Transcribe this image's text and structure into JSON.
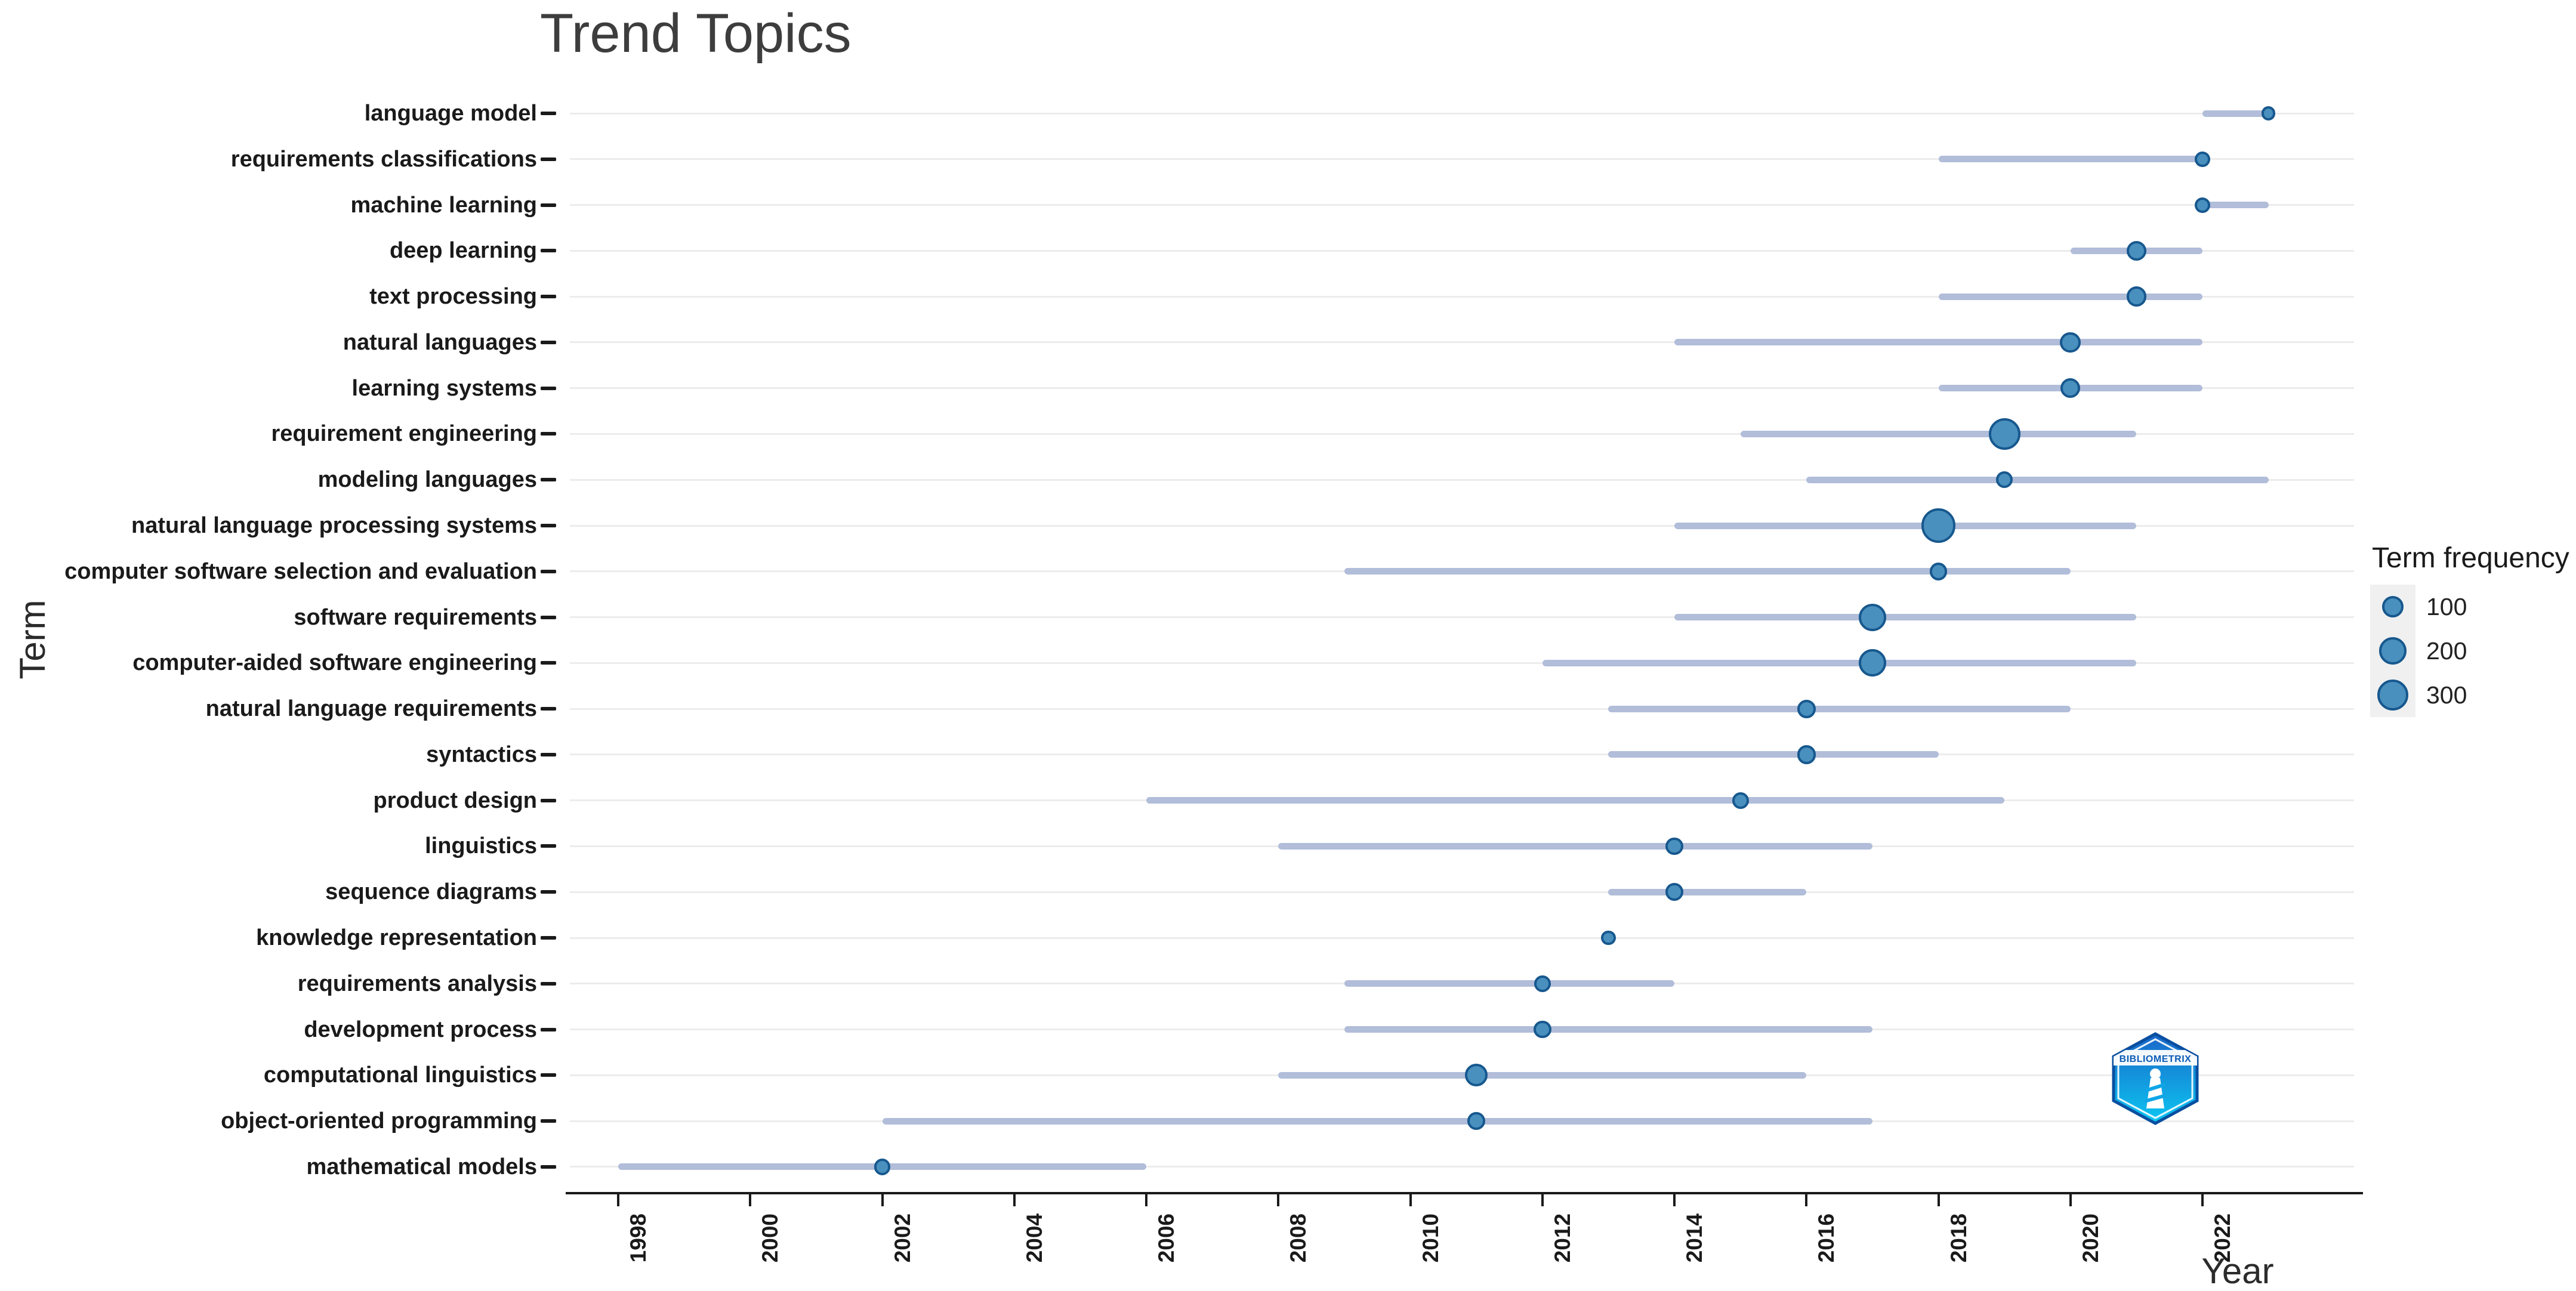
{
  "title": "Trend Topics",
  "logo": {
    "text": "BIBLIOMETRIX"
  },
  "colors": {
    "dot_fill": "#4A90BE",
    "dot_stroke": "#17588E",
    "range_segment": "#B1BDD9",
    "row_gridline": "#ECECEC",
    "axis": "#1A1A1A",
    "title_text": "#3D3D3D",
    "legend_key_bg": "#F0F0F0",
    "logo_blue_top": "#1A66C8",
    "logo_blue_bottom": "#0CC7F2"
  },
  "chart_data": {
    "type": "scatter",
    "title": "Trend Topics",
    "xlabel": "Year",
    "ylabel": "Term",
    "xlim": [
      1996.5,
      2024.5
    ],
    "x_ticks": [
      1998,
      2000,
      2002,
      2004,
      2006,
      2008,
      2010,
      2012,
      2014,
      2016,
      2018,
      2020,
      2022
    ],
    "grid": "horizontal-row-lines-only",
    "legend": {
      "title": "Term frequency",
      "position": "right",
      "sizes": [
        100,
        200,
        300
      ]
    },
    "terms": [
      {
        "term": "language model",
        "year_q1": 2022,
        "year_median": 2023,
        "year_q3": 2023,
        "frequency": 15
      },
      {
        "term": "requirements classifications",
        "year_q1": 2018,
        "year_median": 2022,
        "year_q3": 2022,
        "frequency": 25
      },
      {
        "term": "machine learning",
        "year_q1": 2022,
        "year_median": 2022,
        "year_q3": 2023,
        "frequency": 25
      },
      {
        "term": "deep learning",
        "year_q1": 2020,
        "year_median": 2021,
        "year_q3": 2022,
        "frequency": 70
      },
      {
        "term": "text processing",
        "year_q1": 2018,
        "year_median": 2021,
        "year_q3": 2022,
        "frequency": 70
      },
      {
        "term": "natural languages",
        "year_q1": 2014,
        "year_median": 2020,
        "year_q3": 2022,
        "frequency": 80
      },
      {
        "term": "learning systems",
        "year_q1": 2018,
        "year_median": 2020,
        "year_q3": 2022,
        "frequency": 70
      },
      {
        "term": "requirement engineering",
        "year_q1": 2015,
        "year_median": 2019,
        "year_q3": 2021,
        "frequency": 300
      },
      {
        "term": "modeling languages",
        "year_q1": 2016,
        "year_median": 2019,
        "year_q3": 2023,
        "frequency": 35
      },
      {
        "term": "natural language processing systems",
        "year_q1": 2014,
        "year_median": 2018,
        "year_q3": 2021,
        "frequency": 380
      },
      {
        "term": "computer software selection and evaluation",
        "year_q1": 2009,
        "year_median": 2018,
        "year_q3": 2020,
        "frequency": 45
      },
      {
        "term": "software requirements",
        "year_q1": 2014,
        "year_median": 2017,
        "year_q3": 2021,
        "frequency": 200
      },
      {
        "term": "computer-aided software engineering",
        "year_q1": 2012,
        "year_median": 2017,
        "year_q3": 2021,
        "frequency": 200
      },
      {
        "term": "natural language requirements",
        "year_q1": 2013,
        "year_median": 2016,
        "year_q3": 2020,
        "frequency": 55
      },
      {
        "term": "syntactics",
        "year_q1": 2013,
        "year_median": 2016,
        "year_q3": 2018,
        "frequency": 55
      },
      {
        "term": "product design",
        "year_q1": 2006,
        "year_median": 2015,
        "year_q3": 2019,
        "frequency": 35
      },
      {
        "term": "linguistics",
        "year_q1": 2008,
        "year_median": 2014,
        "year_q3": 2017,
        "frequency": 45
      },
      {
        "term": "sequence diagrams",
        "year_q1": 2013,
        "year_median": 2014,
        "year_q3": 2016,
        "frequency": 45
      },
      {
        "term": "knowledge representation",
        "year_q1": 2013,
        "year_median": 2013,
        "year_q3": 2013,
        "frequency": 20
      },
      {
        "term": "requirements analysis",
        "year_q1": 2009,
        "year_median": 2012,
        "year_q3": 2014,
        "frequency": 35
      },
      {
        "term": "development process",
        "year_q1": 2009,
        "year_median": 2012,
        "year_q3": 2017,
        "frequency": 45
      },
      {
        "term": "computational linguistics",
        "year_q1": 2008,
        "year_median": 2011,
        "year_q3": 2016,
        "frequency": 110
      },
      {
        "term": "object-oriented programming",
        "year_q1": 2002,
        "year_median": 2011,
        "year_q3": 2017,
        "frequency": 45
      },
      {
        "term": "mathematical models",
        "year_q1": 1998,
        "year_median": 2002,
        "year_q3": 2006,
        "frequency": 35
      }
    ]
  }
}
